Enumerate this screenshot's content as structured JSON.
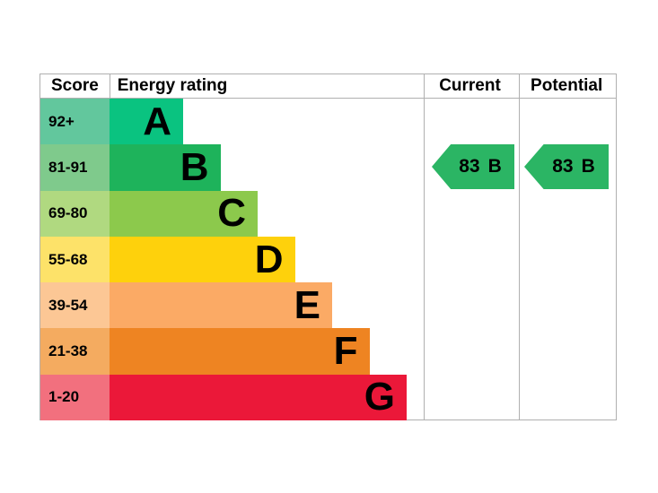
{
  "header": {
    "score": "Score",
    "energy_rating": "Energy rating",
    "current": "Current",
    "potential": "Potential"
  },
  "bands": [
    {
      "letter": "A",
      "score": "92+",
      "bar_color": "#0ac380",
      "score_color": "#62c79d"
    },
    {
      "letter": "B",
      "score": "81-91",
      "bar_color": "#1eb35b",
      "score_color": "#7fca8c"
    },
    {
      "letter": "C",
      "score": "69-80",
      "bar_color": "#8cc94c",
      "score_color": "#b0d980"
    },
    {
      "letter": "D",
      "score": "55-68",
      "bar_color": "#fed10c",
      "score_color": "#fde269"
    },
    {
      "letter": "E",
      "score": "39-54",
      "bar_color": "#fbaa65",
      "score_color": "#fcc795"
    },
    {
      "letter": "F",
      "score": "21-38",
      "bar_color": "#ee8422",
      "score_color": "#f4ab60"
    },
    {
      "letter": "G",
      "score": "1-20",
      "bar_color": "#eb1839",
      "score_color": "#f2707e"
    }
  ],
  "ratings": {
    "current": {
      "value": "83",
      "letter": "B",
      "arrow_color": "#2bb564"
    },
    "potential": {
      "value": "83",
      "letter": "B",
      "arrow_color": "#2bb564"
    }
  },
  "colors": {
    "border": "#b0b0b0",
    "text": "#000000",
    "background": "#ffffff"
  },
  "chart_data": {
    "type": "bar",
    "title": "Energy rating (EPC)",
    "categories": [
      "A",
      "B",
      "C",
      "D",
      "E",
      "F",
      "G"
    ],
    "score_ranges": [
      "92+",
      "81-91",
      "69-80",
      "55-68",
      "39-54",
      "21-38",
      "1-20"
    ],
    "columns": [
      "Score",
      "Energy rating",
      "Current",
      "Potential"
    ],
    "bar_colors": [
      "#0ac380",
      "#1eb35b",
      "#8cc94c",
      "#fed10c",
      "#fbaa65",
      "#ee8422",
      "#eb1839"
    ],
    "current_rating": {
      "value": 83,
      "band": "B"
    },
    "potential_rating": {
      "value": 83,
      "band": "B"
    },
    "legend_position": "none",
    "grid": false
  }
}
